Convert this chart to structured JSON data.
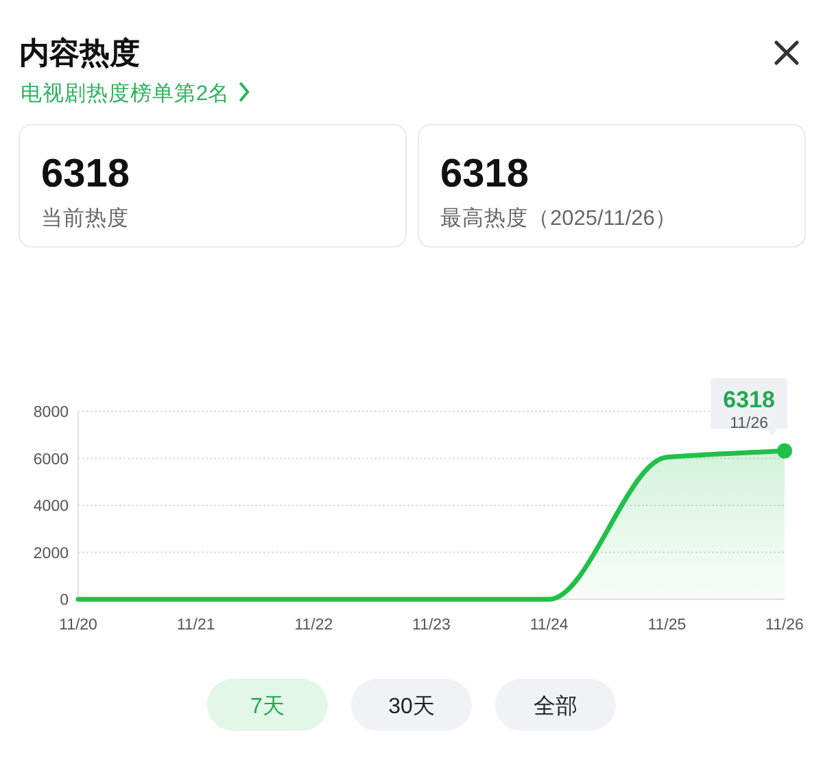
{
  "chart_data": {
    "type": "area",
    "title": "内容热度",
    "subtitle": "电视剧热度榜单第2名",
    "categories": [
      "11/20",
      "11/21",
      "11/22",
      "11/23",
      "11/24",
      "11/25",
      "11/26"
    ],
    "series": [
      {
        "color": "#20c04a",
        "values": [
          0,
          0,
          0,
          0,
          0,
          6050,
          6318
        ]
      },
      {
        "type": "scatter",
        "marker": "circle",
        "color": "#20c04a",
        "x": [
          "11/26"
        ],
        "values": [
          6318
        ]
      }
    ],
    "ylim": [
      0,
      8000
    ],
    "yticks": [
      0,
      2000,
      4000,
      6000,
      8000
    ],
    "grid": "y",
    "annotations": [
      "6318",
      "当前热度",
      "6318",
      "最高热度（2025/11/26）",
      {
        "text": "6318",
        "x": "11/26",
        "y": 6318
      },
      {
        "text": "11/26",
        "x": "11/26",
        "y": 6318
      },
      "7天",
      "30天",
      "全部"
    ]
  }
}
